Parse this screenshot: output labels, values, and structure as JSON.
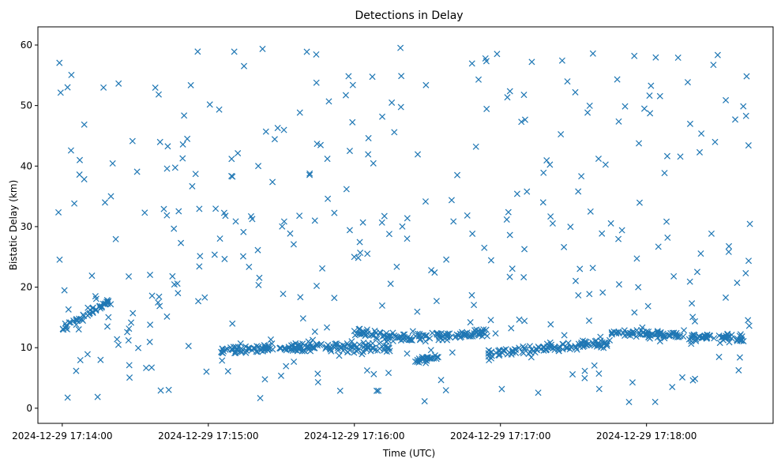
{
  "chart_data": {
    "type": "scatter",
    "title": "Detections in Delay",
    "xlabel": "Time (UTC)",
    "ylabel": "Bistatic Delay (km)",
    "marker": "x",
    "marker_color": "#1f77b4",
    "grid": false,
    "x_axis_type": "time",
    "x_range": [
      "2024-12-29 17:13:50",
      "2024-12-29 17:18:52"
    ],
    "ylim": [
      -2.5,
      63
    ],
    "x_ticks": [
      "2024-12-29 17:14:00",
      "2024-12-29 17:15:00",
      "2024-12-29 17:16:00",
      "2024-12-29 17:17:00",
      "2024-12-29 17:18:00"
    ],
    "y_ticks": [
      0,
      10,
      20,
      30,
      40,
      50,
      60
    ],
    "x_start": "2024-12-29 17:13:58",
    "x_end": "2024-12-29 17:18:43",
    "n_points": 1000,
    "clutter_delay_range": [
      0.5,
      60
    ],
    "track_segments": [
      {
        "from": "2024-12-29 17:14:00",
        "to": "2024-12-29 17:14:20",
        "delay_from": 13.0,
        "delay_to": 18.0
      },
      {
        "from": "2024-12-29 17:15:05",
        "to": "2024-12-29 17:16:00",
        "delay_from": 9.5,
        "delay_to": 10.5
      },
      {
        "from": "2024-12-29 17:16:00",
        "to": "2024-12-29 17:16:20",
        "delay_from": 12.5,
        "delay_to": 11.5
      },
      {
        "from": "2024-12-29 17:16:20",
        "to": "2024-12-29 17:16:55",
        "delay_from": 11.5,
        "delay_to": 12.5
      },
      {
        "from": "2024-12-29 17:16:55",
        "to": "2024-12-29 17:17:45",
        "delay_from": 9.0,
        "delay_to": 10.8
      },
      {
        "from": "2024-12-29 17:17:45",
        "to": "2024-12-29 17:18:40",
        "delay_from": 12.5,
        "delay_to": 11.5
      },
      {
        "from": "2024-12-29 17:15:55",
        "to": "2024-12-29 17:16:15",
        "delay_from": 10.0,
        "delay_to": 10.0
      },
      {
        "from": "2024-12-29 17:16:25",
        "to": "2024-12-29 17:16:35",
        "delay_from": 8.0,
        "delay_to": 8.5
      }
    ]
  }
}
